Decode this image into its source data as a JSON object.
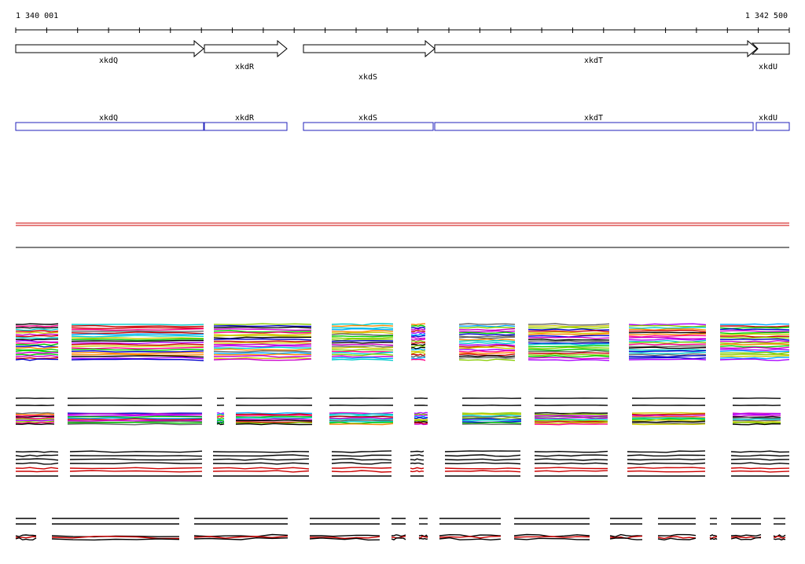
{
  "ruler": {
    "start_label": "1 340 001",
    "end_label": "1 342 500"
  },
  "genes": [
    {
      "name": "xkdQ"
    },
    {
      "name": "xkdR"
    },
    {
      "name": "xkdS"
    },
    {
      "name": "xkdT"
    },
    {
      "name": "xkdU"
    }
  ],
  "colors": {
    "arrow_stroke": "#000000",
    "cds_box_stroke": "#2222bb",
    "reference_line": "#cc0000",
    "axis_line": "#000000",
    "track_palette": [
      "#00cccc",
      "#cc00cc",
      "#00cc00",
      "#cccc00",
      "#0000cc",
      "#cc0000",
      "#000000",
      "#ff8800",
      "#00aaff",
      "#aa00ff",
      "#88cc00",
      "#ff0088",
      "#666666"
    ]
  },
  "tracks": [
    {
      "id": "multicolor-coverage",
      "style": "multicolor"
    },
    {
      "id": "mixed-coverage",
      "style": "mixed"
    },
    {
      "id": "black-red-coverage",
      "style": "blackred"
    },
    {
      "id": "sparse-coverage",
      "style": "sparse"
    }
  ]
}
